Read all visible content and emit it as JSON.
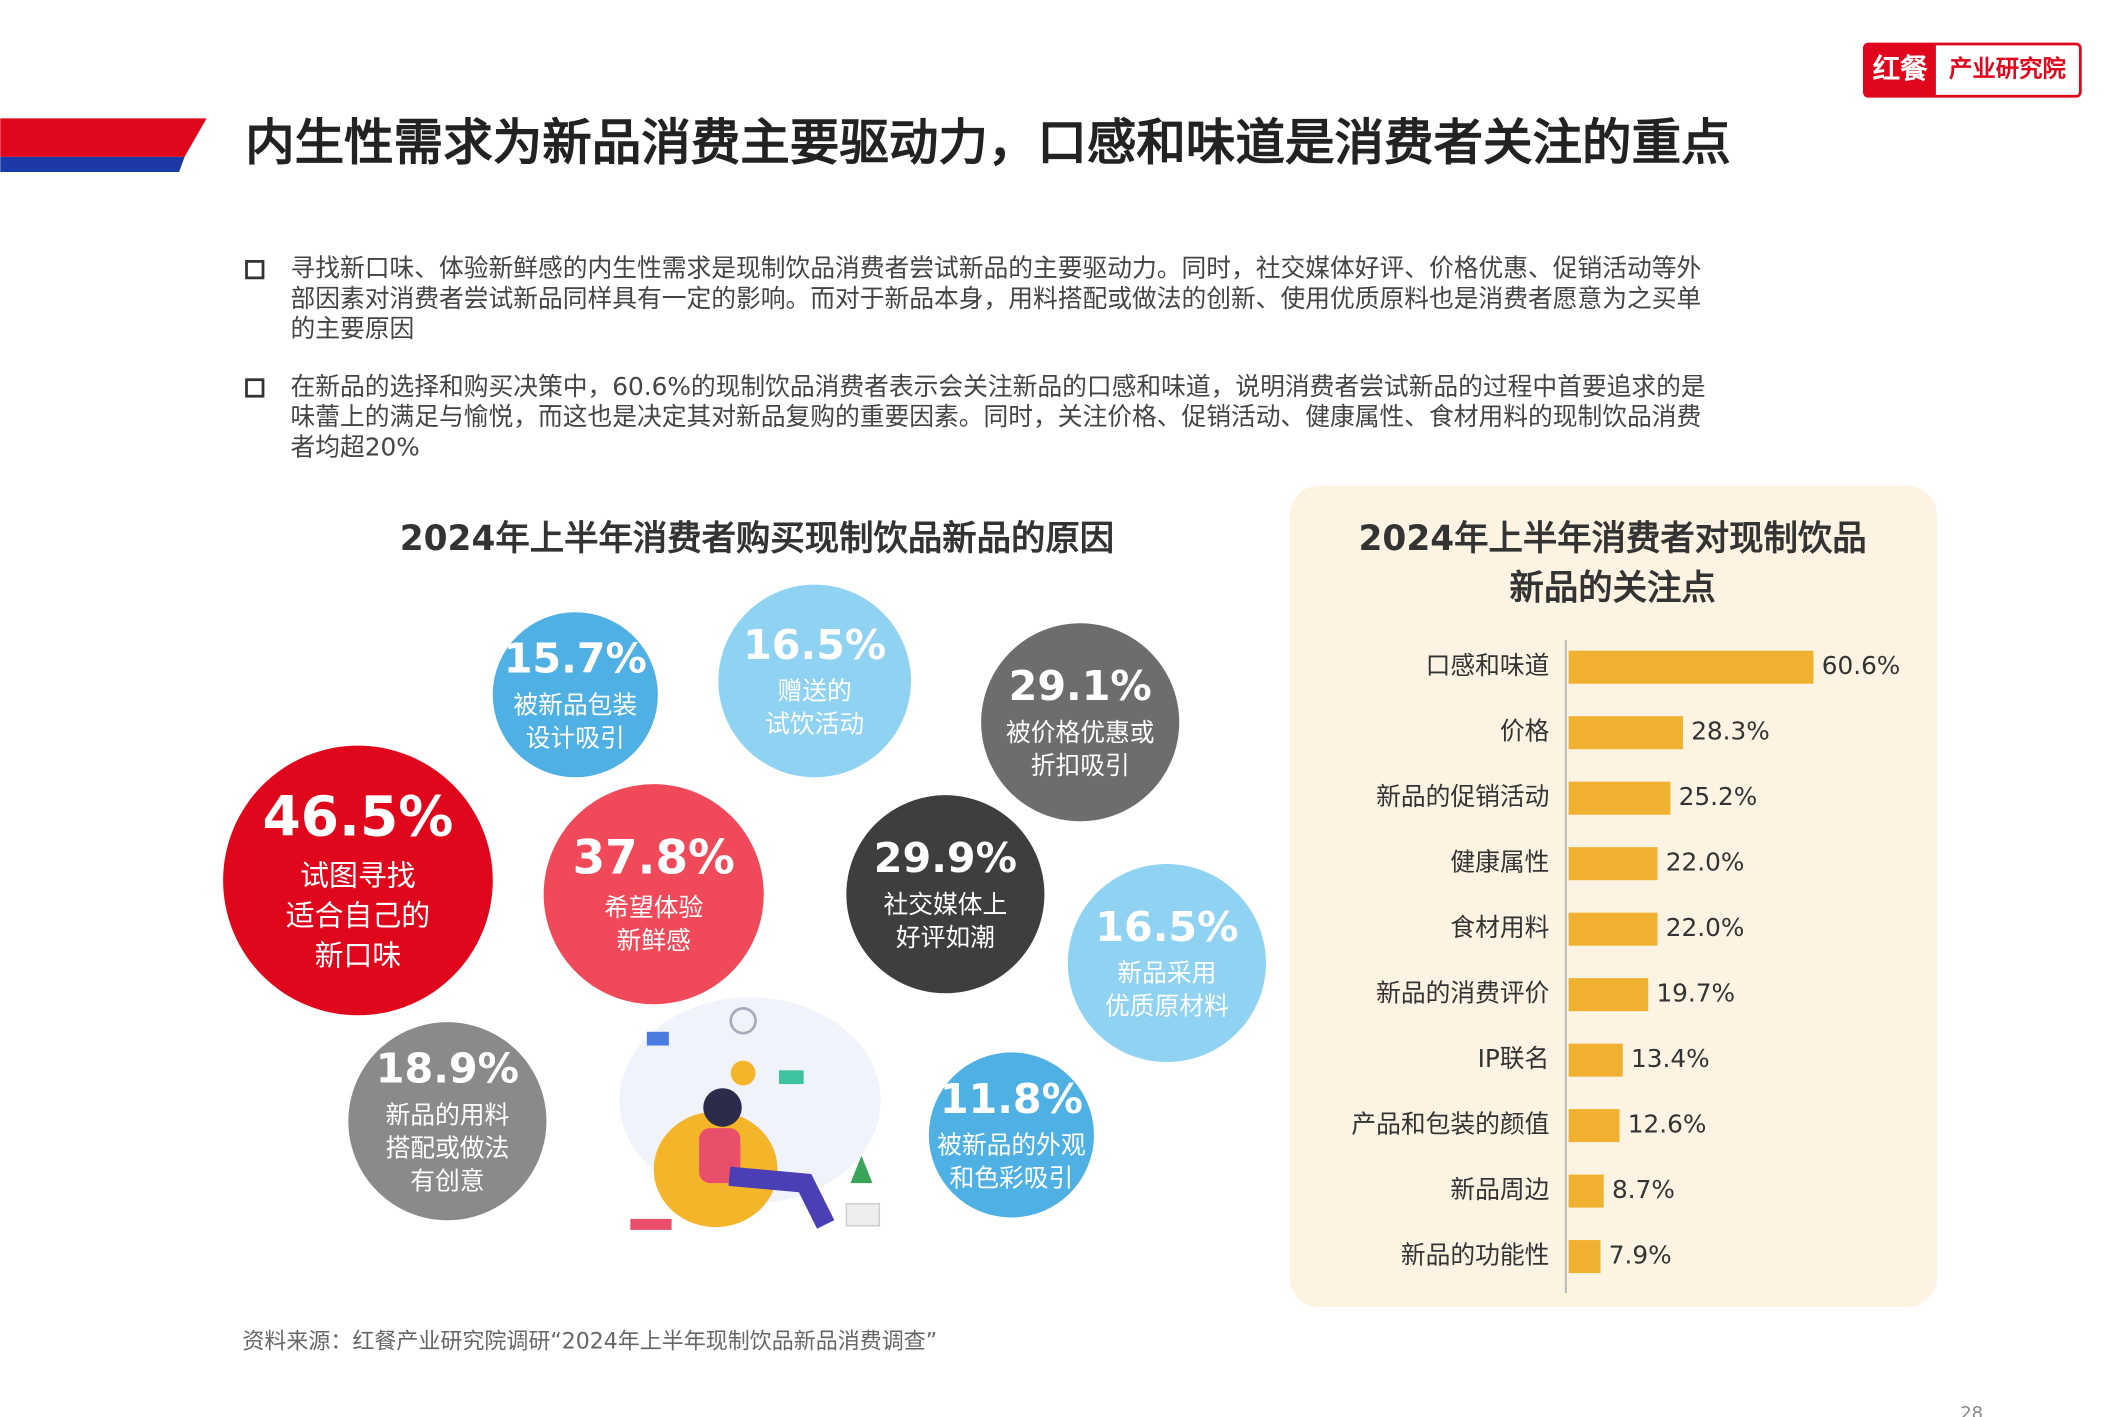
{
  "header": {
    "logo_mark": "红餐",
    "logo_text": "产业研究院",
    "title": "内生性需求为新品消费主要驱动力，口感和味道是消费者关注的重点"
  },
  "bullets": [
    [
      "寻找新口味、体验新鲜感的内生性需求是现制饮品消费者尝试新品的主要驱动力。同时，社交媒体好评、价格优惠、促销活动等外",
      "部因素对消费者尝试新品同样具有一定的影响。而对于新品本身，用料搭配或做法的创新、使用优质原料也是消费者愿意为之买单",
      "的主要原因"
    ],
    [
      "在新品的选择和购买决策中，60.6%的现制饮品消费者表示会关注新品的口感和味道，说明消费者尝试新品的过程中首要追求的是",
      "味蕾上的满足与愉悦，而这也是决定其对新品复购的重要因素。同时，关注价格、促销活动、健康属性、食材用料的现制饮品消费",
      "者均超20%"
    ]
  ],
  "bubble_chart": {
    "type": "bubble",
    "title": "2024年上半年消费者购买现制饮品新品的原因",
    "values": [
      46.5,
      15.7,
      16.5,
      29.1,
      37.8,
      29.9,
      16.5,
      18.9,
      11.8
    ],
    "value_labels": [
      "46.5%",
      "15.7%",
      "16.5%",
      "29.1%",
      "37.8%",
      "29.9%",
      "16.5%",
      "18.9%",
      "11.8%"
    ],
    "labels": [
      [
        "试图寻找",
        "适合自己的",
        "新口味"
      ],
      [
        "被新品包装",
        "设计吸引"
      ],
      [
        "赠送的",
        "试饮活动"
      ],
      [
        "被价格优惠或",
        "折扣吸引"
      ],
      [
        "希望体验",
        "新鲜感"
      ],
      [
        "社交媒体上",
        "好评如潮"
      ],
      [
        "新品采用",
        "优质原材料"
      ],
      [
        "新品的用料",
        "搭配或做法",
        "有创意"
      ],
      [
        "被新品的外观",
        "和色彩吸引"
      ]
    ],
    "colors": [
      "#e0061c",
      "#4fb0e3",
      "#8fd2f1",
      "#6d6d6d",
      "#f04a5a",
      "#3e3e3e",
      "#8fd2f1",
      "#8a8a8a",
      "#4fb0e3"
    ]
  },
  "bar_chart": {
    "type": "bar",
    "title": [
      "2024年上半年消费者对现制饮品",
      "新品的关注点"
    ],
    "categories": [
      "口感和味道",
      "价格",
      "新品的促销活动",
      "健康属性",
      "食材用料",
      "新品的消费评价",
      "IP联名",
      "产品和包装的颜值",
      "新品周边",
      "新品的功能性"
    ],
    "values": [
      60.6,
      28.3,
      25.2,
      22.0,
      22.0,
      19.7,
      13.4,
      12.6,
      8.7,
      7.9
    ],
    "value_labels": [
      "60.6%",
      "28.3%",
      "25.2%",
      "22.0%",
      "22.0%",
      "19.7%",
      "13.4%",
      "12.6%",
      "8.7%",
      "7.9%"
    ],
    "color": "#f0b030"
  },
  "footer": {
    "source": "资料来源：红餐产业研究院调研“2024年上半年现制饮品新品消费调查”",
    "page": "28"
  }
}
